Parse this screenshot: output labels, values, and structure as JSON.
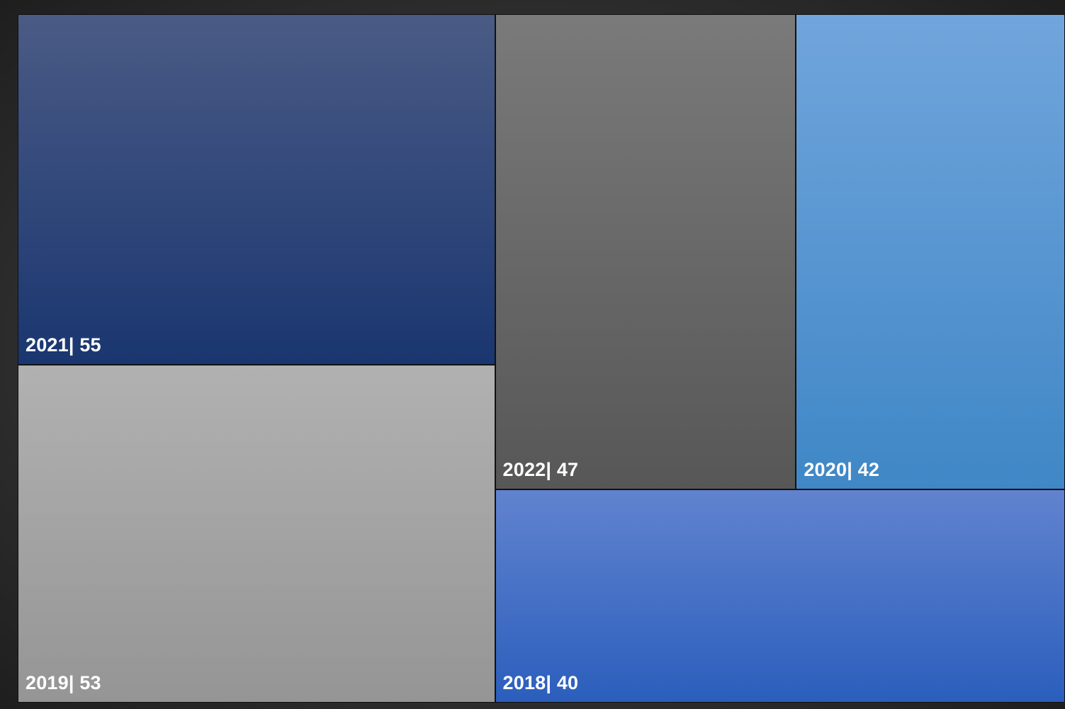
{
  "chart_data": {
    "type": "treemap",
    "title": "",
    "label_separator": "| ",
    "items": [
      {
        "label": "2021",
        "value": 55,
        "display": "2021| 55",
        "color_top": "#4a5b85",
        "color_bottom": "#1a3670"
      },
      {
        "label": "2019",
        "value": 53,
        "display": "2019| 53",
        "color_top": "#b1b1b1",
        "color_bottom": "#959595"
      },
      {
        "label": "2022",
        "value": 47,
        "display": "2022| 47",
        "color_top": "#7a7a7a",
        "color_bottom": "#575757"
      },
      {
        "label": "2020",
        "value": 42,
        "display": "2020| 42",
        "color_top": "#71a5dc",
        "color_bottom": "#3f87c6"
      },
      {
        "label": "2018",
        "value": 40,
        "display": "2018| 40",
        "color_top": "#6183cf",
        "color_bottom": "#2b5ebc"
      }
    ]
  }
}
